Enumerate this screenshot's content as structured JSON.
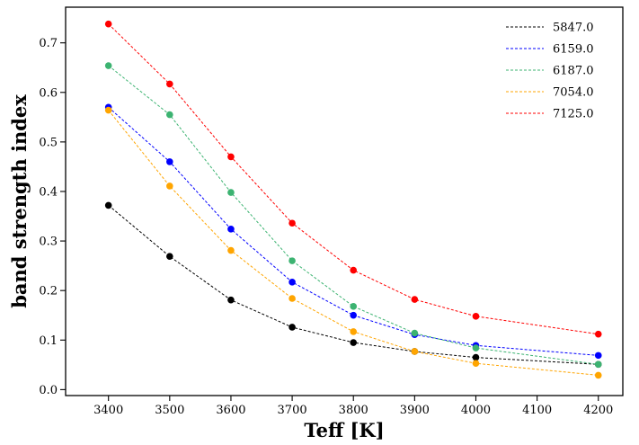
{
  "chart_data": {
    "type": "line",
    "title": "",
    "xlabel": "Teff [K]",
    "ylabel": "band strength index",
    "x": [
      3400,
      3500,
      3600,
      3700,
      3800,
      3900,
      4000,
      4200
    ],
    "xlim": [
      3330,
      4240
    ],
    "ylim": [
      -0.012,
      0.772
    ],
    "xticks": [
      3400,
      3500,
      3600,
      3700,
      3800,
      3900,
      4000,
      4100,
      4200
    ],
    "yticks": [
      0.0,
      0.1,
      0.2,
      0.3,
      0.4,
      0.5,
      0.6,
      0.7
    ],
    "ytick_labels": [
      "0.0",
      "0.1",
      "0.2",
      "0.3",
      "0.4",
      "0.5",
      "0.6",
      "0.7"
    ],
    "grid": false,
    "legend_position": "top-right",
    "series": [
      {
        "name": "5847.0",
        "color": "#000000",
        "values": [
          0.372,
          0.269,
          0.181,
          0.126,
          0.095,
          0.077,
          0.065,
          0.051
        ]
      },
      {
        "name": "6159.0",
        "color": "#0000ff",
        "values": [
          0.57,
          0.46,
          0.324,
          0.217,
          0.15,
          0.111,
          0.089,
          0.069
        ]
      },
      {
        "name": "6187.0",
        "color": "#3cb371",
        "values": [
          0.654,
          0.555,
          0.398,
          0.26,
          0.168,
          0.114,
          0.084,
          0.051
        ]
      },
      {
        "name": "7054.0",
        "color": "#ffa500",
        "values": [
          0.564,
          0.411,
          0.281,
          0.184,
          0.117,
          0.077,
          0.053,
          0.029
        ]
      },
      {
        "name": "7125.0",
        "color": "#ff0000",
        "values": [
          0.738,
          0.617,
          0.47,
          0.336,
          0.241,
          0.182,
          0.148,
          0.112
        ]
      }
    ]
  }
}
